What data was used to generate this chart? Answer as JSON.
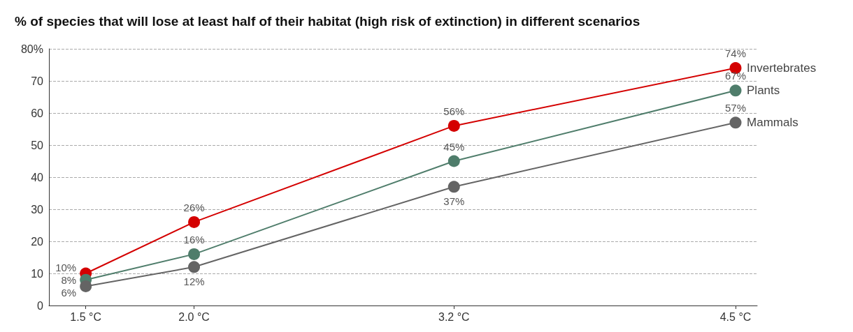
{
  "chart_data": {
    "type": "line",
    "title": "% of species that will lose at least half of their habitat (high risk of extinction) in different scenarios",
    "x": [
      1.5,
      2.0,
      3.2,
      4.5
    ],
    "xlim": [
      1.33,
      4.6
    ],
    "xticks": [
      {
        "value": 1.5,
        "label": "1.5 °C"
      },
      {
        "value": 2.0,
        "label": "2.0 °C"
      },
      {
        "value": 3.2,
        "label": "3.2 °C"
      },
      {
        "value": 4.5,
        "label": "4.5 °C"
      }
    ],
    "ylim": [
      0,
      80
    ],
    "yticks": [
      0,
      10,
      20,
      30,
      40,
      50,
      60,
      70,
      {
        "value": 80,
        "label": "80%"
      }
    ],
    "grid": "y",
    "legend": false,
    "marker": "circle",
    "line_style": "solid",
    "series": [
      {
        "name": "Invertebrates",
        "color": "#d40000",
        "values": [
          10,
          26,
          56,
          74
        ],
        "value_labels": [
          "10%",
          "26%",
          "56%",
          "74%"
        ]
      },
      {
        "name": "Plants",
        "color": "#4f7d6b",
        "values": [
          8,
          16,
          45,
          67
        ],
        "value_labels": [
          "8%",
          "16%",
          "45%",
          "67%"
        ]
      },
      {
        "name": "Mammals",
        "color": "#646464",
        "values": [
          6,
          12,
          37,
          57
        ],
        "value_labels": [
          "6%",
          "12%",
          "37%",
          "57%"
        ]
      }
    ]
  }
}
